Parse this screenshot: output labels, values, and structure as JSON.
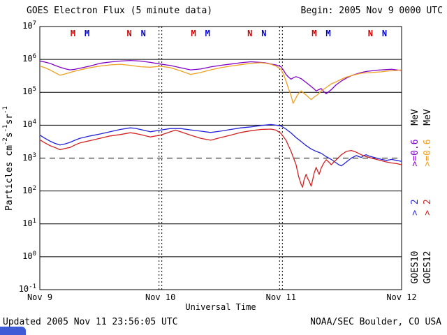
{
  "header": {
    "title": "GOES Electron Flux (5 minute data)",
    "begin_label": "Begin: 2005 Nov 9 0000 UTC"
  },
  "footer": {
    "updated": "Updated 2005 Nov 11 23:56:05 UTC",
    "credit": "NOAA/SEC Boulder, CO USA"
  },
  "colors": {
    "purple": "#8000c8",
    "orange": "#efa020",
    "blue": "#2222dd",
    "red": "#d42020",
    "marker_red": "#cc0000",
    "marker_blue": "#0000cc",
    "corner_fragment": "#3f5bd5"
  },
  "yaxis_label_parts": [
    {
      "t": "Particles cm"
    },
    {
      "t": "-2",
      "sup": true
    },
    {
      "t": "s"
    },
    {
      "t": "-1",
      "sup": true
    },
    {
      "t": "sr"
    },
    {
      "t": "-1",
      "sup": true
    }
  ],
  "right_labels": {
    "col1": {
      "sat": "GOES10",
      "gt2": "> 2",
      "ge06": ">=0.6",
      "mev": "MeV"
    },
    "col2": {
      "sat": "GOES12",
      "gt2": "> 2",
      "ge06": ">=0.6",
      "mev": "MeV"
    }
  },
  "chart_data": {
    "type": "line",
    "title": "GOES Electron Flux (5 minute data)",
    "xlabel": "Universal Time",
    "ylabel": "Particles cm-2 s-1 sr-1",
    "x_unit": "hours since 2005 Nov 9 0000 UTC",
    "x_range_hours": [
      0,
      72
    ],
    "y_scale": "log10",
    "y_exp_range": [
      -1,
      7
    ],
    "yticks_exp": [
      7,
      6,
      5,
      4,
      3,
      2,
      1,
      0,
      -1
    ],
    "threshold_exp": 3,
    "day_boundary_hours": [
      24,
      48
    ],
    "grid": "solid horizontal per decade, dashed at 1e3, dotted vertical at day boundaries",
    "legend_position": "right margin, rotated",
    "xticks": [
      {
        "hour": 0,
        "label": "Nov 9"
      },
      {
        "hour": 24,
        "label": "Nov 10"
      },
      {
        "hour": 48,
        "label": "Nov 11"
      },
      {
        "hour": 72,
        "label": "Nov 12"
      }
    ],
    "markers": [
      {
        "label": "M",
        "hour": 6.6,
        "color": "#cc0000"
      },
      {
        "label": "M",
        "hour": 9.4,
        "color": "#0000cc"
      },
      {
        "label": "N",
        "hour": 17.8,
        "color": "#cc0000"
      },
      {
        "label": "N",
        "hour": 20.6,
        "color": "#0000cc"
      },
      {
        "label": "M",
        "hour": 30.6,
        "color": "#cc0000"
      },
      {
        "label": "M",
        "hour": 33.4,
        "color": "#0000cc"
      },
      {
        "label": "N",
        "hour": 41.8,
        "color": "#cc0000"
      },
      {
        "label": "N",
        "hour": 44.6,
        "color": "#0000cc"
      },
      {
        "label": "M",
        "hour": 54.6,
        "color": "#cc0000"
      },
      {
        "label": "M",
        "hour": 57.4,
        "color": "#0000cc"
      },
      {
        "label": "N",
        "hour": 65.8,
        "color": "#cc0000"
      },
      {
        "label": "N",
        "hour": 68.6,
        "color": "#0000cc"
      }
    ],
    "series": [
      {
        "id": "goes10-ge06",
        "name": "GOES10 >=0.6 MeV",
        "color": "#8000c8",
        "points": [
          [
            0,
            890000.0
          ],
          [
            1,
            830000.0
          ],
          [
            2,
            760000.0
          ],
          [
            3,
            660000.0
          ],
          [
            4,
            580000.0
          ],
          [
            5,
            520000.0
          ],
          [
            6,
            480000.0
          ],
          [
            7,
            500000.0
          ],
          [
            8,
            540000.0
          ],
          [
            10,
            630000.0
          ],
          [
            12,
            760000.0
          ],
          [
            14,
            830000.0
          ],
          [
            16,
            890000.0
          ],
          [
            18,
            930000.0
          ],
          [
            20,
            890000.0
          ],
          [
            22,
            810000.0
          ],
          [
            24,
            720000.0
          ],
          [
            26,
            650000.0
          ],
          [
            28,
            560000.0
          ],
          [
            30,
            480000.0
          ],
          [
            32,
            510000.0
          ],
          [
            34,
            590000.0
          ],
          [
            36,
            660000.0
          ],
          [
            38,
            720000.0
          ],
          [
            40,
            790000.0
          ],
          [
            42,
            850000.0
          ],
          [
            44,
            810000.0
          ],
          [
            45,
            780000.0
          ],
          [
            46,
            720000.0
          ],
          [
            47,
            680000.0
          ],
          [
            48,
            600000.0
          ],
          [
            48.5,
            470000.0
          ],
          [
            49,
            350000.0
          ],
          [
            49.5,
            290000.0
          ],
          [
            50,
            250000.0
          ],
          [
            50.5,
            280000.0
          ],
          [
            51,
            300000.0
          ],
          [
            51.5,
            280000.0
          ],
          [
            52,
            260000.0
          ],
          [
            53,
            200000.0
          ],
          [
            54,
            150000.0
          ],
          [
            54.5,
            130000.0
          ],
          [
            55,
            110000.0
          ],
          [
            55.5,
            120000.0
          ],
          [
            56,
            130000.0
          ],
          [
            56.5,
            105000.0
          ],
          [
            57,
            90000.0
          ],
          [
            57.5,
            105000.0
          ],
          [
            58,
            120000.0
          ],
          [
            59,
            170000.0
          ],
          [
            60,
            220000.0
          ],
          [
            61,
            270000.0
          ],
          [
            62,
            320000.0
          ],
          [
            63,
            360000.0
          ],
          [
            64,
            400000.0
          ],
          [
            65,
            430000.0
          ],
          [
            66,
            450000.0
          ],
          [
            67,
            470000.0
          ],
          [
            68,
            480000.0
          ],
          [
            69,
            490000.0
          ],
          [
            70,
            500000.0
          ],
          [
            71,
            480000.0
          ],
          [
            72,
            460000.0
          ]
        ]
      },
      {
        "id": "goes12-ge06",
        "name": "GOES12 >=0.6 MeV",
        "color": "#efa020",
        "points": [
          [
            0,
            630000.0
          ],
          [
            1,
            560000.0
          ],
          [
            2,
            480000.0
          ],
          [
            3,
            400000.0
          ],
          [
            4,
            330000.0
          ],
          [
            5,
            360000.0
          ],
          [
            6,
            400000.0
          ],
          [
            7,
            440000.0
          ],
          [
            8,
            480000.0
          ],
          [
            10,
            560000.0
          ],
          [
            12,
            630000.0
          ],
          [
            14,
            680000.0
          ],
          [
            16,
            710000.0
          ],
          [
            18,
            660000.0
          ],
          [
            20,
            600000.0
          ],
          [
            22,
            580000.0
          ],
          [
            24,
            620000.0
          ],
          [
            26,
            560000.0
          ],
          [
            28,
            450000.0
          ],
          [
            30,
            350000.0
          ],
          [
            32,
            400000.0
          ],
          [
            34,
            480000.0
          ],
          [
            36,
            560000.0
          ],
          [
            38,
            630000.0
          ],
          [
            40,
            690000.0
          ],
          [
            42,
            760000.0
          ],
          [
            44,
            790000.0
          ],
          [
            45,
            760000.0
          ],
          [
            46,
            710000.0
          ],
          [
            47,
            630000.0
          ],
          [
            48,
            500000.0
          ],
          [
            48.5,
            350000.0
          ],
          [
            49,
            220000.0
          ],
          [
            49.5,
            130000.0
          ],
          [
            50,
            79000.0
          ],
          [
            50.4,
            46000.0
          ],
          [
            50.8,
            60000.0
          ],
          [
            51.2,
            79000.0
          ],
          [
            51.6,
            95000.0
          ],
          [
            52,
            110000.0
          ],
          [
            52.5,
            95000.0
          ],
          [
            53,
            83000.0
          ],
          [
            53.5,
            70000.0
          ],
          [
            54,
            60000.0
          ],
          [
            54.5,
            70000.0
          ],
          [
            55,
            79000.0
          ],
          [
            55.5,
            91000.0
          ],
          [
            56,
            110000.0
          ],
          [
            57,
            140000.0
          ],
          [
            58,
            180000.0
          ],
          [
            59,
            210000.0
          ],
          [
            60,
            250000.0
          ],
          [
            61,
            290000.0
          ],
          [
            62,
            320000.0
          ],
          [
            63,
            350000.0
          ],
          [
            64,
            380000.0
          ],
          [
            65,
            390000.0
          ],
          [
            66,
            400000.0
          ],
          [
            67,
            410000.0
          ],
          [
            68,
            420000.0
          ],
          [
            69,
            440000.0
          ],
          [
            70,
            450000.0
          ],
          [
            71,
            460000.0
          ],
          [
            72,
            480000.0
          ]
        ]
      },
      {
        "id": "goes10-gt2",
        "name": "GOES10 > 2 MeV",
        "color": "#2222dd",
        "points": [
          [
            0,
            5000.0
          ],
          [
            1,
            4000.0
          ],
          [
            2,
            3300.0
          ],
          [
            3,
            2800.0
          ],
          [
            4,
            2500.0
          ],
          [
            5,
            2700.0
          ],
          [
            6,
            3000.0
          ],
          [
            7,
            3500.0
          ],
          [
            8,
            4000.0
          ],
          [
            10,
            4700.0
          ],
          [
            12,
            5400.0
          ],
          [
            14,
            6300.0
          ],
          [
            16,
            7400.0
          ],
          [
            18,
            8300.0
          ],
          [
            19,
            8000.0
          ],
          [
            20,
            7400.0
          ],
          [
            22,
            6300.0
          ],
          [
            24,
            7100.0
          ],
          [
            26,
            7900.0
          ],
          [
            28,
            7900.0
          ],
          [
            30,
            7200.0
          ],
          [
            32,
            6600.0
          ],
          [
            34,
            6000.0
          ],
          [
            36,
            6600.0
          ],
          [
            38,
            7400.0
          ],
          [
            40,
            8300.0
          ],
          [
            42,
            8900.0
          ],
          [
            44,
            9800.0
          ],
          [
            46,
            10500.0
          ],
          [
            47,
            10000.0
          ],
          [
            48,
            9500.0
          ],
          [
            49,
            7600.0
          ],
          [
            50,
            5800.0
          ],
          [
            51,
            4200.0
          ],
          [
            52,
            3200.0
          ],
          [
            53,
            2400.0
          ],
          [
            54,
            1900.0
          ],
          [
            55,
            1600.0
          ],
          [
            56,
            1400.0
          ],
          [
            57,
            1100.0
          ],
          [
            58,
            910.0
          ],
          [
            59,
            710.0
          ],
          [
            59.5,
            630.0
          ],
          [
            60,
            580.0
          ],
          [
            60.5,
            660.0
          ],
          [
            61,
            760.0
          ],
          [
            62,
            1000.0
          ],
          [
            63,
            1200.0
          ],
          [
            63.5,
            1100.0
          ],
          [
            64,
            1050.0
          ],
          [
            64.5,
            1200.0
          ],
          [
            65,
            1260.0
          ],
          [
            65.5,
            1150.0
          ],
          [
            66,
            1100.0
          ],
          [
            67,
            1000.0
          ],
          [
            68,
            910.0
          ],
          [
            69,
            850.0
          ],
          [
            70,
            910.0
          ],
          [
            71,
            850.0
          ],
          [
            72,
            790.0
          ]
        ]
      },
      {
        "id": "goes12-gt2",
        "name": "GOES12 > 2 MeV",
        "color": "#d42020",
        "points": [
          [
            0,
            3600.0
          ],
          [
            1,
            2900.0
          ],
          [
            2,
            2400.0
          ],
          [
            3,
            2100.0
          ],
          [
            4,
            1800.0
          ],
          [
            5,
            1950.0
          ],
          [
            6,
            2100.0
          ],
          [
            7,
            2500.0
          ],
          [
            8,
            2900.0
          ],
          [
            10,
            3400.0
          ],
          [
            12,
            4000.0
          ],
          [
            14,
            4700.0
          ],
          [
            16,
            5200.0
          ],
          [
            18,
            5900.0
          ],
          [
            19,
            5600.0
          ],
          [
            20,
            5200.0
          ],
          [
            22,
            4400.0
          ],
          [
            24,
            5000.0
          ],
          [
            25,
            5600.0
          ],
          [
            26,
            6300.0
          ],
          [
            27,
            7100.0
          ],
          [
            28,
            6300.0
          ],
          [
            30,
            5000.0
          ],
          [
            32,
            4000.0
          ],
          [
            34,
            3500.0
          ],
          [
            36,
            4200.0
          ],
          [
            38,
            5000.0
          ],
          [
            40,
            6000.0
          ],
          [
            42,
            6800.0
          ],
          [
            44,
            7400.0
          ],
          [
            46,
            7600.0
          ],
          [
            47,
            7100.0
          ],
          [
            48,
            5600.0
          ],
          [
            49,
            3500.0
          ],
          [
            50,
            1600.0
          ],
          [
            50.5,
            1000.0
          ],
          [
            51,
            630.0
          ],
          [
            51.5,
            280.0
          ],
          [
            52,
            160.0
          ],
          [
            52.3,
            130.0
          ],
          [
            52.6,
            220.0
          ],
          [
            53,
            320.0
          ],
          [
            53.3,
            240.0
          ],
          [
            53.6,
            200.0
          ],
          [
            54,
            140.0
          ],
          [
            54.3,
            220.0
          ],
          [
            54.6,
            350.0
          ],
          [
            55,
            520.0
          ],
          [
            55.3,
            400.0
          ],
          [
            55.6,
            320.0
          ],
          [
            56,
            500.0
          ],
          [
            56.5,
            700.0
          ],
          [
            57,
            890.0
          ],
          [
            57.5,
            760.0
          ],
          [
            58,
            630.0
          ],
          [
            58.5,
            760.0
          ],
          [
            59,
            890.0
          ],
          [
            60,
            1260.0
          ],
          [
            61,
            1600.0
          ],
          [
            62,
            1700.0
          ],
          [
            63,
            1500.0
          ],
          [
            64,
            1260.0
          ],
          [
            65,
            1100.0
          ],
          [
            66,
            1000.0
          ],
          [
            67,
            910.0
          ],
          [
            68,
            830.0
          ],
          [
            69,
            760.0
          ],
          [
            70,
            710.0
          ],
          [
            71,
            680.0
          ],
          [
            72,
            630.0
          ]
        ]
      }
    ]
  }
}
